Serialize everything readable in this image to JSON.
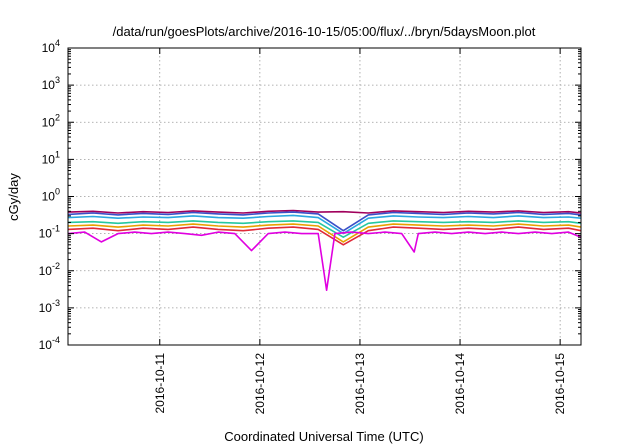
{
  "chart_data": {
    "type": "line",
    "title": "/data/run/goesPlots/archive/2016-10-15/05:00/flux/../bryn/5daysMoon.plot",
    "xlabel": "Coordinated Universal Time (UTC)",
    "ylabel": "cGy/day",
    "yscale": "log",
    "ylim": [
      0.0001,
      10000
    ],
    "xlim": [
      "2016-10-10T02:00",
      "2016-10-15T05:00"
    ],
    "grid": true,
    "legend": "none",
    "x_ticks": [
      {
        "value": "2016-10-11T00:00",
        "label": "2016-10-11"
      },
      {
        "value": "2016-10-12T00:00",
        "label": "2016-10-12"
      },
      {
        "value": "2016-10-13T00:00",
        "label": "2016-10-13"
      },
      {
        "value": "2016-10-14T00:00",
        "label": "2016-10-14"
      },
      {
        "value": "2016-10-15T00:00",
        "label": "2016-10-15"
      }
    ],
    "y_ticks": [
      {
        "value": 0.0001,
        "base": "10",
        "exp": "-4"
      },
      {
        "value": 0.001,
        "base": "10",
        "exp": "-3"
      },
      {
        "value": 0.01,
        "base": "10",
        "exp": "-2"
      },
      {
        "value": 0.1,
        "base": "10",
        "exp": "-1"
      },
      {
        "value": 1,
        "base": "10",
        "exp": "0"
      },
      {
        "value": 10,
        "base": "10",
        "exp": "1"
      },
      {
        "value": 100,
        "base": "10",
        "exp": "2"
      },
      {
        "value": 1000,
        "base": "10",
        "exp": "3"
      },
      {
        "value": 10000,
        "base": "10",
        "exp": "4"
      }
    ],
    "series": [
      {
        "color": "#a0005c",
        "x": [
          "2016-10-10T02:00",
          "2016-10-10T08:00",
          "2016-10-10T14:00",
          "2016-10-10T20:00",
          "2016-10-11T02:00",
          "2016-10-11T08:00",
          "2016-10-11T14:00",
          "2016-10-11T20:00",
          "2016-10-12T02:00",
          "2016-10-12T08:00",
          "2016-10-12T14:00",
          "2016-10-12T20:00",
          "2016-10-13T02:00",
          "2016-10-13T08:00",
          "2016-10-13T14:00",
          "2016-10-13T20:00",
          "2016-10-14T02:00",
          "2016-10-14T08:00",
          "2016-10-14T14:00",
          "2016-10-14T20:00",
          "2016-10-15T02:00",
          "2016-10-15T05:00"
        ],
        "y": [
          0.38,
          0.4,
          0.36,
          0.39,
          0.37,
          0.41,
          0.38,
          0.36,
          0.4,
          0.42,
          0.38,
          0.39,
          0.36,
          0.41,
          0.39,
          0.37,
          0.4,
          0.38,
          0.41,
          0.37,
          0.39,
          0.36
        ]
      },
      {
        "color": "#3a50c8",
        "x": [
          "2016-10-10T02:00",
          "2016-10-10T08:00",
          "2016-10-10T14:00",
          "2016-10-10T20:00",
          "2016-10-11T02:00",
          "2016-10-11T08:00",
          "2016-10-11T14:00",
          "2016-10-11T20:00",
          "2016-10-12T02:00",
          "2016-10-12T08:00",
          "2016-10-12T14:00",
          "2016-10-12T20:00",
          "2016-10-13T02:00",
          "2016-10-13T08:00",
          "2016-10-13T14:00",
          "2016-10-13T20:00",
          "2016-10-14T02:00",
          "2016-10-14T08:00",
          "2016-10-14T14:00",
          "2016-10-14T20:00",
          "2016-10-15T02:00",
          "2016-10-15T05:00"
        ],
        "y": [
          0.33,
          0.36,
          0.32,
          0.35,
          0.33,
          0.37,
          0.34,
          0.32,
          0.36,
          0.38,
          0.34,
          0.12,
          0.32,
          0.37,
          0.35,
          0.33,
          0.36,
          0.34,
          0.37,
          0.33,
          0.35,
          0.32
        ]
      },
      {
        "color": "#2aa8e0",
        "x": [
          "2016-10-10T02:00",
          "2016-10-10T08:00",
          "2016-10-10T14:00",
          "2016-10-10T20:00",
          "2016-10-11T02:00",
          "2016-10-11T08:00",
          "2016-10-11T14:00",
          "2016-10-11T20:00",
          "2016-10-12T02:00",
          "2016-10-12T08:00",
          "2016-10-12T14:00",
          "2016-10-12T20:00",
          "2016-10-13T02:00",
          "2016-10-13T08:00",
          "2016-10-13T14:00",
          "2016-10-13T20:00",
          "2016-10-14T02:00",
          "2016-10-14T08:00",
          "2016-10-14T14:00",
          "2016-10-14T20:00",
          "2016-10-15T02:00",
          "2016-10-15T05:00"
        ],
        "y": [
          0.27,
          0.29,
          0.26,
          0.28,
          0.27,
          0.3,
          0.27,
          0.26,
          0.29,
          0.31,
          0.27,
          0.1,
          0.26,
          0.3,
          0.28,
          0.27,
          0.29,
          0.27,
          0.3,
          0.27,
          0.28,
          0.26
        ]
      },
      {
        "color": "#25c8a0",
        "x": [
          "2016-10-10T02:00",
          "2016-10-10T08:00",
          "2016-10-10T14:00",
          "2016-10-10T20:00",
          "2016-10-11T02:00",
          "2016-10-11T08:00",
          "2016-10-11T14:00",
          "2016-10-11T20:00",
          "2016-10-12T02:00",
          "2016-10-12T08:00",
          "2016-10-12T14:00",
          "2016-10-12T20:00",
          "2016-10-13T02:00",
          "2016-10-13T08:00",
          "2016-10-13T14:00",
          "2016-10-13T20:00",
          "2016-10-14T02:00",
          "2016-10-14T08:00",
          "2016-10-14T14:00",
          "2016-10-14T20:00",
          "2016-10-15T02:00",
          "2016-10-15T05:00"
        ],
        "y": [
          0.2,
          0.21,
          0.19,
          0.21,
          0.2,
          0.22,
          0.2,
          0.19,
          0.21,
          0.22,
          0.2,
          0.08,
          0.19,
          0.22,
          0.21,
          0.2,
          0.21,
          0.2,
          0.22,
          0.2,
          0.21,
          0.19
        ]
      },
      {
        "color": "#e8a000",
        "x": [
          "2016-10-10T02:00",
          "2016-10-10T08:00",
          "2016-10-10T14:00",
          "2016-10-10T20:00",
          "2016-10-11T02:00",
          "2016-10-11T08:00",
          "2016-10-11T14:00",
          "2016-10-11T20:00",
          "2016-10-12T02:00",
          "2016-10-12T08:00",
          "2016-10-12T14:00",
          "2016-10-12T20:00",
          "2016-10-13T02:00",
          "2016-10-13T08:00",
          "2016-10-13T14:00",
          "2016-10-13T20:00",
          "2016-10-14T02:00",
          "2016-10-14T08:00",
          "2016-10-14T14:00",
          "2016-10-14T20:00",
          "2016-10-15T02:00",
          "2016-10-15T05:00"
        ],
        "y": [
          0.16,
          0.17,
          0.15,
          0.17,
          0.16,
          0.18,
          0.16,
          0.15,
          0.17,
          0.18,
          0.16,
          0.06,
          0.15,
          0.18,
          0.17,
          0.16,
          0.17,
          0.16,
          0.18,
          0.16,
          0.17,
          0.15
        ]
      },
      {
        "color": "#e02a3a",
        "x": [
          "2016-10-10T02:00",
          "2016-10-10T08:00",
          "2016-10-10T14:00",
          "2016-10-10T20:00",
          "2016-10-11T02:00",
          "2016-10-11T08:00",
          "2016-10-11T14:00",
          "2016-10-11T20:00",
          "2016-10-12T02:00",
          "2016-10-12T08:00",
          "2016-10-12T14:00",
          "2016-10-12T20:00",
          "2016-10-13T02:00",
          "2016-10-13T08:00",
          "2016-10-13T14:00",
          "2016-10-13T20:00",
          "2016-10-14T02:00",
          "2016-10-14T08:00",
          "2016-10-14T14:00",
          "2016-10-14T20:00",
          "2016-10-15T02:00",
          "2016-10-15T05:00"
        ],
        "y": [
          0.13,
          0.14,
          0.12,
          0.14,
          0.13,
          0.15,
          0.13,
          0.12,
          0.14,
          0.15,
          0.13,
          0.05,
          0.12,
          0.15,
          0.14,
          0.13,
          0.14,
          0.13,
          0.15,
          0.13,
          0.14,
          0.12
        ]
      },
      {
        "color": "#e000e0",
        "x": [
          "2016-10-10T02:00",
          "2016-10-10T06:00",
          "2016-10-10T10:00",
          "2016-10-10T14:00",
          "2016-10-10T18:00",
          "2016-10-10T22:00",
          "2016-10-11T02:00",
          "2016-10-11T06:00",
          "2016-10-11T10:00",
          "2016-10-11T14:00",
          "2016-10-11T18:00",
          "2016-10-11T22:00",
          "2016-10-12T02:00",
          "2016-10-12T06:00",
          "2016-10-12T10:00",
          "2016-10-12T14:00",
          "2016-10-12T16:00",
          "2016-10-12T18:00",
          "2016-10-12T22:00",
          "2016-10-13T02:00",
          "2016-10-13T06:00",
          "2016-10-13T10:00",
          "2016-10-13T13:00",
          "2016-10-13T14:00",
          "2016-10-13T18:00",
          "2016-10-13T22:00",
          "2016-10-14T02:00",
          "2016-10-14T06:00",
          "2016-10-14T10:00",
          "2016-10-14T14:00",
          "2016-10-14T18:00",
          "2016-10-14T22:00",
          "2016-10-15T02:00",
          "2016-10-15T05:00"
        ],
        "y": [
          0.1,
          0.11,
          0.06,
          0.1,
          0.11,
          0.1,
          0.11,
          0.1,
          0.09,
          0.11,
          0.1,
          0.035,
          0.1,
          0.11,
          0.1,
          0.1,
          0.003,
          0.1,
          0.11,
          0.1,
          0.11,
          0.1,
          0.032,
          0.1,
          0.11,
          0.1,
          0.11,
          0.1,
          0.11,
          0.1,
          0.11,
          0.1,
          0.11,
          0.08
        ]
      }
    ]
  }
}
